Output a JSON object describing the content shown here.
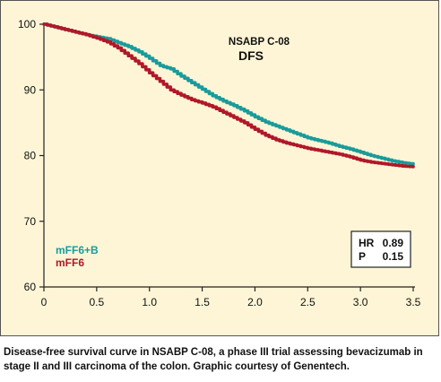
{
  "chart_data": {
    "type": "line",
    "title": "NSABP C-08",
    "subtitle": "DFS",
    "xlabel": "",
    "ylabel": "",
    "xlim": [
      0,
      3.5
    ],
    "ylim": [
      60,
      100
    ],
    "x_ticks": [
      "0",
      "0.5",
      "1.0",
      "1.5",
      "2.0",
      "2.5",
      "3.0",
      "3.5"
    ],
    "y_ticks": [
      "60",
      "70",
      "80",
      "90",
      "100"
    ],
    "grid": false,
    "legend": "bottom-left",
    "series": [
      {
        "name": "mFF6+B",
        "color": "#1a9b9b",
        "points": [
          [
            0,
            100
          ],
          [
            0.1,
            99.6
          ],
          [
            0.2,
            99.2
          ],
          [
            0.3,
            98.8
          ],
          [
            0.4,
            98.4
          ],
          [
            0.5,
            98.1
          ],
          [
            0.6,
            97.8
          ],
          [
            0.7,
            97.2
          ],
          [
            0.8,
            96.6
          ],
          [
            0.9,
            95.8
          ],
          [
            1.0,
            94.8
          ],
          [
            1.1,
            93.7
          ],
          [
            1.2,
            93.2
          ],
          [
            1.3,
            92.1
          ],
          [
            1.4,
            91.1
          ],
          [
            1.5,
            90.1
          ],
          [
            1.6,
            89.1
          ],
          [
            1.7,
            88.3
          ],
          [
            1.8,
            87.6
          ],
          [
            1.9,
            86.8
          ],
          [
            2.0,
            85.9
          ],
          [
            2.1,
            85.1
          ],
          [
            2.2,
            84.5
          ],
          [
            2.3,
            83.9
          ],
          [
            2.4,
            83.3
          ],
          [
            2.5,
            82.7
          ],
          [
            2.6,
            82.3
          ],
          [
            2.7,
            81.9
          ],
          [
            2.8,
            81.4
          ],
          [
            2.9,
            81.0
          ],
          [
            3.0,
            80.5
          ],
          [
            3.1,
            80.0
          ],
          [
            3.2,
            79.6
          ],
          [
            3.3,
            79.2
          ],
          [
            3.4,
            78.9
          ],
          [
            3.5,
            78.7
          ]
        ]
      },
      {
        "name": "mFF6",
        "color": "#b0182a",
        "points": [
          [
            0,
            100
          ],
          [
            0.1,
            99.6
          ],
          [
            0.2,
            99.2
          ],
          [
            0.3,
            98.8
          ],
          [
            0.4,
            98.4
          ],
          [
            0.5,
            97.9
          ],
          [
            0.6,
            97.3
          ],
          [
            0.7,
            96.4
          ],
          [
            0.8,
            95.2
          ],
          [
            0.9,
            94.0
          ],
          [
            1.0,
            92.6
          ],
          [
            1.1,
            91.3
          ],
          [
            1.2,
            90.0
          ],
          [
            1.3,
            89.2
          ],
          [
            1.4,
            88.5
          ],
          [
            1.5,
            88.0
          ],
          [
            1.6,
            87.4
          ],
          [
            1.7,
            86.6
          ],
          [
            1.8,
            85.8
          ],
          [
            1.9,
            85.0
          ],
          [
            2.0,
            84.0
          ],
          [
            2.1,
            83.1
          ],
          [
            2.2,
            82.4
          ],
          [
            2.3,
            81.9
          ],
          [
            2.4,
            81.5
          ],
          [
            2.5,
            81.1
          ],
          [
            2.6,
            80.8
          ],
          [
            2.7,
            80.5
          ],
          [
            2.8,
            80.2
          ],
          [
            2.9,
            79.8
          ],
          [
            3.0,
            79.3
          ],
          [
            3.1,
            79.0
          ],
          [
            3.2,
            78.8
          ],
          [
            3.3,
            78.6
          ],
          [
            3.4,
            78.4
          ],
          [
            3.5,
            78.3
          ]
        ]
      }
    ],
    "stats": [
      {
        "label": "HR",
        "value": "0.89"
      },
      {
        "label": "P",
        "value": "0.15"
      }
    ]
  },
  "caption": "Disease-free survival curve in NSABP C-08, a  phase III trial assessing bevacizumab in stage II and III carcinoma of the colon. Graphic courtesy of Genentech."
}
